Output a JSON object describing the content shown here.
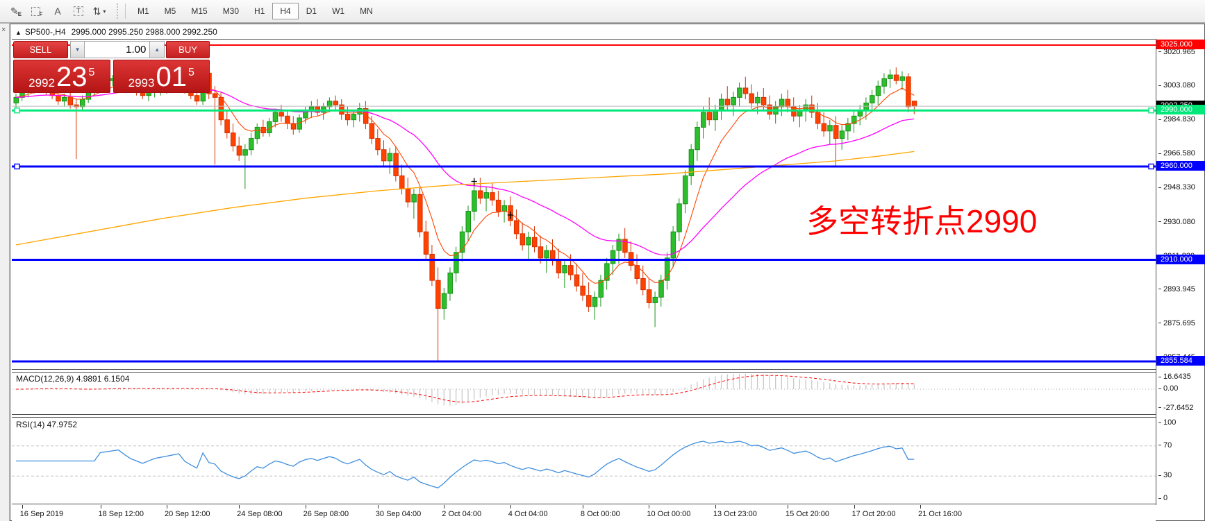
{
  "icons": {
    "triangle_up": "▲",
    "close": "×",
    "caret_down": "▾",
    "spin_up": "▲",
    "spin_down": "▼"
  },
  "toolbar": {
    "icon_buttons": [
      {
        "name": "draw-objects-icon",
        "glyph": "✎",
        "sub": "E"
      },
      {
        "name": "grid-objects-icon",
        "glyph": "",
        "sub": "F"
      },
      {
        "name": "text-label-icon",
        "glyph": "A"
      },
      {
        "name": "text-box-icon",
        "glyph": "T",
        "boxed": true
      },
      {
        "name": "arrange-arrows-icon",
        "glyph": "⇅",
        "caret": true
      }
    ],
    "timeframes": [
      "M1",
      "M5",
      "M15",
      "M30",
      "H1",
      "H4",
      "D1",
      "W1",
      "MN"
    ],
    "active_timeframe": "H4"
  },
  "chart": {
    "title_symbol": "SP500-,H4",
    "title_ohlc": "2995.000 2995.250 2988.000 2992.250",
    "macd_label": "MACD(12,26,9) 4.9891 6.1504",
    "rsi_label": "RSI(14) 47.9752",
    "annotation": {
      "text": "多空转折点2990",
      "color": "#FF0000"
    }
  },
  "panel": {
    "sell_label": "SELL",
    "buy_label": "BUY",
    "volume": "1.00",
    "sell_big": "2992",
    "sell_pips": "23",
    "sell_sup": "5",
    "buy_big": "2993",
    "buy_pips": "01",
    "buy_sup": "5"
  },
  "chart_data": {
    "type": "candlestick",
    "symbol": "SP500-",
    "timeframe": "H4",
    "colors": {
      "bull_fill": "#2DBE2D",
      "bull_stroke": "#169216",
      "bear_fill": "#FF4200",
      "bear_stroke": "#D43000"
    },
    "price_axis": {
      "ticks": [
        {
          "label": "3020.965",
          "price": 3020.965
        },
        {
          "label": "3003.080",
          "price": 3003.08
        },
        {
          "label": "2984.830",
          "price": 2984.83
        },
        {
          "label": "2966.580",
          "price": 2966.58
        },
        {
          "label": "2948.330",
          "price": 2948.33
        },
        {
          "label": "2930.080",
          "price": 2930.08
        },
        {
          "label": "2911.830",
          "price": 2911.83
        },
        {
          "label": "2893.945",
          "price": 2893.945
        },
        {
          "label": "2875.695",
          "price": 2875.695
        },
        {
          "label": "2857.445",
          "price": 2857.445
        }
      ],
      "badges": [
        {
          "label": "3025.000",
          "price": 3025.0,
          "bg": "#FF0000"
        },
        {
          "label": "2992.250",
          "price": 2992.25,
          "bg": "#000000"
        },
        {
          "label": "2990.000",
          "price": 2990.0,
          "bg": "#00E878"
        },
        {
          "label": "2960.000",
          "price": 2960.0,
          "bg": "#0000FF"
        },
        {
          "label": "2910.000",
          "price": 2910.0,
          "bg": "#0000FF"
        },
        {
          "label": "2855.584",
          "price": 2855.584,
          "bg": "#0000FF"
        }
      ]
    },
    "hlines": [
      {
        "price": 2992.25,
        "color": "#BBBBBB",
        "width": 1
      },
      {
        "price": 3025.0,
        "color": "#FF0000",
        "width": 2
      },
      {
        "price": 2990.0,
        "color": "#00E878",
        "width": 3,
        "handles": true
      },
      {
        "price": 2960.0,
        "color": "#0000FF",
        "width": 3,
        "handles": true
      },
      {
        "price": 2910.0,
        "color": "#0000FF",
        "width": 3
      },
      {
        "price": 2855.584,
        "color": "#0000FF",
        "width": 3
      }
    ],
    "ma_lines": [
      {
        "name": "fast-ema",
        "period": 8,
        "color": "#FF4500",
        "width": 1.1
      },
      {
        "name": "medium-ema",
        "period": 34,
        "color": "#FF00FF",
        "width": 1.3
      },
      {
        "name": "slow-ma",
        "color": "#FFA500",
        "width": 1.3,
        "points": [
          [
            0,
            2918
          ],
          [
            12,
            2925
          ],
          [
            24,
            2932
          ],
          [
            36,
            2938
          ],
          [
            48,
            2943
          ],
          [
            60,
            2947
          ],
          [
            72,
            2950
          ],
          [
            84,
            2952
          ],
          [
            96,
            2954
          ],
          [
            108,
            2956
          ],
          [
            120,
            2959
          ],
          [
            128,
            2961
          ],
          [
            136,
            2963
          ],
          [
            143,
            2965.5
          ],
          [
            149,
            2968
          ]
        ]
      }
    ],
    "markers": [
      {
        "bar": 76,
        "price": 2952
      },
      {
        "bar": 82,
        "price": 2934
      }
    ],
    "macd": {
      "params": [
        12,
        26,
        9
      ],
      "hist_color": "#C4C4C4",
      "signal_color": "#FF0000",
      "axis": [
        {
          "label": "16.6435",
          "value": 16.6435
        },
        {
          "label": "0.00",
          "value": 0
        },
        {
          "label": "-27.6452",
          "value": -27.6452
        }
      ]
    },
    "rsi": {
      "period": 14,
      "color": "#3E8EDE",
      "axis": [
        {
          "label": "100",
          "value": 100
        },
        {
          "label": "70",
          "value": 70,
          "dashed": true
        },
        {
          "label": "30",
          "value": 30,
          "dashed": true
        },
        {
          "label": "0",
          "value": 0
        }
      ]
    },
    "time_axis": [
      {
        "bar": 1,
        "label": "16 Sep 2019"
      },
      {
        "bar": 14,
        "label": "18 Sep 12:00"
      },
      {
        "bar": 25,
        "label": "20 Sep 12:00"
      },
      {
        "bar": 37,
        "label": "24 Sep 08:00"
      },
      {
        "bar": 48,
        "label": "26 Sep 08:00"
      },
      {
        "bar": 60,
        "label": "30 Sep 04:00"
      },
      {
        "bar": 71,
        "label": "2 Oct 04:00"
      },
      {
        "bar": 82,
        "label": "4 Oct 04:00"
      },
      {
        "bar": 94,
        "label": "8 Oct 00:00"
      },
      {
        "bar": 105,
        "label": "10 Oct 00:00"
      },
      {
        "bar": 116,
        "label": "13 Oct 23:00"
      },
      {
        "bar": 128,
        "label": "15 Oct 20:00"
      },
      {
        "bar": 139,
        "label": "17 Oct 20:00"
      },
      {
        "bar": 150,
        "label": "21 Oct 16:00"
      }
    ],
    "candles": [
      [
        2994,
        2999,
        2991,
        2997
      ],
      [
        2997,
        3002,
        2995,
        3000
      ],
      [
        3000,
        3004,
        2997,
        3002
      ],
      [
        3002,
        3005,
        2999,
        3003
      ],
      [
        3003,
        3006,
        3000,
        3004
      ],
      [
        3004,
        3006,
        2998,
        3000
      ],
      [
        3000,
        3003,
        2996,
        2998
      ],
      [
        2998,
        3001,
        2993,
        2995
      ],
      [
        2995,
        2999,
        2992,
        2997
      ],
      [
        2997,
        3000,
        2991,
        2993
      ],
      [
        2993,
        2996,
        2964,
        2992
      ],
      [
        2992,
        2998,
        2990,
        2996
      ],
      [
        2996,
        3002,
        2994,
        3000
      ],
      [
        3000,
        3005,
        2998,
        3003
      ],
      [
        3003,
        3007,
        3000,
        3005
      ],
      [
        3005,
        3008,
        3002,
        3006
      ],
      [
        3006,
        3009,
        3003,
        3007
      ],
      [
        3007,
        3010,
        3004,
        3008
      ],
      [
        3008,
        3010,
        3003,
        3005
      ],
      [
        3005,
        3007,
        3000,
        3002
      ],
      [
        3002,
        3005,
        2998,
        3000
      ],
      [
        3000,
        3003,
        2996,
        2998
      ],
      [
        2998,
        3002,
        2995,
        3000
      ],
      [
        3000,
        3004,
        2997,
        3002
      ],
      [
        3002,
        3005,
        2998,
        3003
      ],
      [
        3003,
        3006,
        2999,
        3004
      ],
      [
        3004,
        3007,
        3000,
        3005
      ],
      [
        3005,
        3008,
        3001,
        3006
      ],
      [
        3006,
        3008,
        2999,
        3001
      ],
      [
        3001,
        3004,
        2996,
        2998
      ],
      [
        2998,
        3001,
        2993,
        2995
      ],
      [
        2995,
        3012,
        2993,
        3010
      ],
      [
        3010,
        3011,
        2996,
        2999
      ],
      [
        2999,
        3003,
        2961,
        2997
      ],
      [
        2997,
        3000,
        2982,
        2985
      ],
      [
        2985,
        2990,
        2975,
        2978
      ],
      [
        2978,
        2983,
        2968,
        2971
      ],
      [
        2971,
        2976,
        2963,
        2966
      ],
      [
        2966,
        2972,
        2948,
        2969
      ],
      [
        2969,
        2978,
        2966,
        2975
      ],
      [
        2975,
        2983,
        2972,
        2981
      ],
      [
        2981,
        2985,
        2976,
        2978
      ],
      [
        2978,
        2986,
        2976,
        2984
      ],
      [
        2984,
        2991,
        2981,
        2989
      ],
      [
        2989,
        2993,
        2984,
        2987
      ],
      [
        2987,
        2990,
        2980,
        2983
      ],
      [
        2983,
        2987,
        2977,
        2980
      ],
      [
        2980,
        2988,
        2978,
        2986
      ],
      [
        2986,
        2992,
        2983,
        2990
      ],
      [
        2990,
        2995,
        2986,
        2992
      ],
      [
        2992,
        2996,
        2987,
        2989
      ],
      [
        2989,
        2994,
        2985,
        2992
      ],
      [
        2992,
        2997,
        2989,
        2995
      ],
      [
        2995,
        2998,
        2990,
        2993
      ],
      [
        2993,
        2996,
        2985,
        2988
      ],
      [
        2988,
        2992,
        2982,
        2985
      ],
      [
        2985,
        2990,
        2981,
        2988
      ],
      [
        2988,
        2994,
        2984,
        2991
      ],
      [
        2991,
        2995,
        2980,
        2983
      ],
      [
        2983,
        2987,
        2972,
        2975
      ],
      [
        2975,
        2980,
        2966,
        2969
      ],
      [
        2969,
        2974,
        2960,
        2963
      ],
      [
        2963,
        2970,
        2956,
        2967
      ],
      [
        2967,
        2971,
        2952,
        2955
      ],
      [
        2955,
        2961,
        2945,
        2948
      ],
      [
        2948,
        2954,
        2938,
        2941
      ],
      [
        2941,
        2948,
        2932,
        2945
      ],
      [
        2945,
        2949,
        2922,
        2925
      ],
      [
        2925,
        2931,
        2910,
        2913
      ],
      [
        2913,
        2918,
        2896,
        2899
      ],
      [
        2899,
        2906,
        2856,
        2884
      ],
      [
        2884,
        2895,
        2878,
        2892
      ],
      [
        2892,
        2906,
        2888,
        2903
      ],
      [
        2903,
        2917,
        2898,
        2914
      ],
      [
        2914,
        2928,
        2909,
        2925
      ],
      [
        2925,
        2939,
        2920,
        2936
      ],
      [
        2936,
        2950,
        2931,
        2947
      ],
      [
        2947,
        2954,
        2940,
        2943
      ],
      [
        2943,
        2949,
        2936,
        2946
      ],
      [
        2946,
        2951,
        2939,
        2942
      ],
      [
        2942,
        2947,
        2933,
        2936
      ],
      [
        2936,
        2942,
        2930,
        2939
      ],
      [
        2939,
        2944,
        2928,
        2931
      ],
      [
        2931,
        2937,
        2921,
        2924
      ],
      [
        2924,
        2930,
        2915,
        2918
      ],
      [
        2918,
        2925,
        2910,
        2922
      ],
      [
        2922,
        2928,
        2914,
        2917
      ],
      [
        2917,
        2923,
        2908,
        2911
      ],
      [
        2911,
        2918,
        2903,
        2915
      ],
      [
        2915,
        2921,
        2907,
        2910
      ],
      [
        2910,
        2916,
        2900,
        2903
      ],
      [
        2903,
        2910,
        2895,
        2907
      ],
      [
        2907,
        2913,
        2899,
        2902
      ],
      [
        2902,
        2908,
        2893,
        2896
      ],
      [
        2896,
        2903,
        2888,
        2891
      ],
      [
        2891,
        2898,
        2882,
        2885
      ],
      [
        2885,
        2893,
        2878,
        2890
      ],
      [
        2890,
        2902,
        2885,
        2899
      ],
      [
        2899,
        2911,
        2894,
        2908
      ],
      [
        2908,
        2918,
        2902,
        2915
      ],
      [
        2915,
        2924,
        2908,
        2921
      ],
      [
        2921,
        2927,
        2911,
        2914
      ],
      [
        2914,
        2920,
        2904,
        2907
      ],
      [
        2907,
        2913,
        2897,
        2900
      ],
      [
        2900,
        2907,
        2891,
        2894
      ],
      [
        2894,
        2900,
        2884,
        2887
      ],
      [
        2887,
        2893,
        2874,
        2890
      ],
      [
        2890,
        2902,
        2885,
        2899
      ],
      [
        2899,
        2914,
        2894,
        2911
      ],
      [
        2911,
        2928,
        2906,
        2925
      ],
      [
        2925,
        2943,
        2920,
        2940
      ],
      [
        2940,
        2958,
        2935,
        2955
      ],
      [
        2955,
        2972,
        2950,
        2969
      ],
      [
        2969,
        2984,
        2963,
        2981
      ],
      [
        2981,
        2992,
        2975,
        2989
      ],
      [
        2989,
        2997,
        2982,
        2985
      ],
      [
        2985,
        2993,
        2979,
        2990
      ],
      [
        2990,
        2999,
        2985,
        2996
      ],
      [
        2996,
        3003,
        2990,
        2993
      ],
      [
        2993,
        3000,
        2987,
        2997
      ],
      [
        2997,
        3005,
        2992,
        3002
      ],
      [
        3002,
        3008,
        2996,
        2999
      ],
      [
        2999,
        3004,
        2991,
        2994
      ],
      [
        2994,
        3000,
        2988,
        2997
      ],
      [
        2997,
        3002,
        2990,
        2993
      ],
      [
        2993,
        2998,
        2985,
        2988
      ],
      [
        2988,
        2995,
        2983,
        2992
      ],
      [
        2992,
        2999,
        2987,
        2996
      ],
      [
        2996,
        3001,
        2989,
        2992
      ],
      [
        2992,
        2997,
        2984,
        2987
      ],
      [
        2987,
        2993,
        2981,
        2990
      ],
      [
        2990,
        2996,
        2984,
        2993
      ],
      [
        2993,
        2998,
        2986,
        2989
      ],
      [
        2989,
        2994,
        2980,
        2983
      ],
      [
        2983,
        2989,
        2976,
        2979
      ],
      [
        2979,
        2985,
        2972,
        2982
      ],
      [
        2982,
        2987,
        2960,
        2975
      ],
      [
        2975,
        2982,
        2969,
        2979
      ],
      [
        2979,
        2986,
        2974,
        2983
      ],
      [
        2983,
        2990,
        2978,
        2987
      ],
      [
        2987,
        2993,
        2982,
        2990
      ],
      [
        2990,
        2997,
        2985,
        2994
      ],
      [
        2994,
        3001,
        2989,
        2998
      ],
      [
        2998,
        3006,
        2993,
        3003
      ],
      [
        3003,
        3010,
        2999,
        3007
      ],
      [
        3007,
        3012,
        3002,
        3009
      ],
      [
        3009,
        3013,
        3004,
        3006
      ],
      [
        3006,
        3011,
        3001,
        3008
      ],
      [
        3008,
        3010,
        2989,
        2992
      ],
      [
        2995,
        2995.25,
        2988,
        2992.25
      ]
    ]
  }
}
